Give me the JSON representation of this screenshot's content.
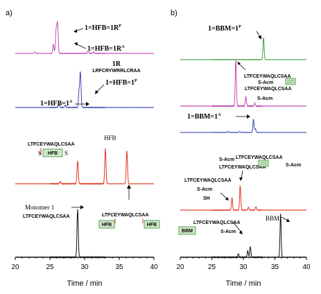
{
  "colors": {
    "magenta": "#c24bb6",
    "blue": "#3a45b8",
    "red": "#e0341c",
    "black": "#111111",
    "green": "#3aa33a",
    "box_fill": "#cfe8c8",
    "box_stroke": "#3a8a3a"
  },
  "chart_data": [
    {
      "type": "line",
      "panel_label": "a)",
      "xlabel": "Time / min",
      "xlim": [
        20,
        40
      ],
      "x_ticks": [
        "20",
        "25",
        "30",
        "35",
        "40"
      ],
      "series": [
        {
          "color_key": "magenta",
          "peaks": [
            [
              22.8,
              0.05
            ],
            [
              25.5,
              0.3
            ],
            [
              25.9,
              0.8
            ],
            [
              26.1,
              1.0
            ],
            [
              30.5,
              0.08
            ],
            [
              31.3,
              0.05
            ]
          ],
          "annotations": [
            {
              "text": "1=HFB=1R",
              "sup": "P"
            },
            {
              "text": "1=HFB=1R",
              "sup": "A"
            },
            {
              "text": "1R"
            },
            {
              "text": "LRFCRYWRRLCRAA"
            }
          ]
        },
        {
          "color_key": "blue",
          "peaks": [
            [
              26.3,
              0.1
            ],
            [
              27.2,
              0.06
            ],
            [
              29.2,
              0.45
            ],
            [
              29.4,
              1.0
            ]
          ],
          "annotations": [
            {
              "text": "1=HFB=1",
              "sup": "P"
            },
            {
              "text": "1=HFB=1",
              "sup": "A"
            }
          ]
        },
        {
          "color_key": "red",
          "peaks": [
            [
              26.5,
              0.05
            ],
            [
              29.0,
              0.55
            ],
            [
              33.0,
              0.85
            ],
            [
              36.1,
              0.8
            ]
          ],
          "annotations": [
            {
              "text": "LTFCEYWAQLCSAA"
            },
            {
              "text": "HFB"
            },
            {
              "text": "HFB"
            },
            {
              "text": "LTFCEYWAQLCSAA"
            },
            {
              "text": "HFB"
            },
            {
              "text": "HFB"
            }
          ]
        },
        {
          "color_key": "black",
          "peaks": [
            [
              29.0,
              1.0
            ]
          ],
          "annotations": [
            {
              "text": "Monomer 1"
            },
            {
              "text": "LTFCEYWAQLCSAA"
            }
          ]
        }
      ]
    },
    {
      "type": "line",
      "panel_label": "b)",
      "xlabel": "Time / min",
      "xlim": [
        20,
        40
      ],
      "x_ticks": [
        "20",
        "25",
        "30",
        "35",
        "40"
      ],
      "series": [
        {
          "color_key": "green",
          "peaks": [
            [
              33.2,
              1.0
            ]
          ],
          "annotations": [
            {
              "text": "1=BBM=1",
              "sup": "P"
            }
          ]
        },
        {
          "color_key": "magenta",
          "peaks": [
            [
              28.8,
              1.0
            ],
            [
              30.4,
              0.2
            ],
            [
              31.8,
              0.06
            ]
          ],
          "annotations": [
            {
              "text": "LTFCEYWAQLCSAA"
            },
            {
              "text": "S-Acm"
            },
            {
              "text": "LTFCEYWAQLCSAA"
            },
            {
              "text": "S-Acm"
            }
          ]
        },
        {
          "color_key": "blue",
          "peaks": [
            [
              27.5,
              0.05
            ],
            [
              29.4,
              0.05
            ],
            [
              31.6,
              0.7
            ],
            [
              31.9,
              0.2
            ]
          ],
          "annotations": [
            {
              "text": "1=BBM=1",
              "sup": "A"
            }
          ]
        },
        {
          "color_key": "red",
          "peaks": [
            [
              28.2,
              0.4
            ],
            [
              29.5,
              0.8
            ],
            [
              30.8,
              0.1
            ],
            [
              32.0,
              0.12
            ]
          ],
          "annotations": [
            {
              "text": "S-Acm"
            },
            {
              "text": "LTFCEYWAQLCSAA"
            },
            {
              "text": "LTFCEYWAQLCSAA"
            },
            {
              "text": "S-Acm"
            },
            {
              "text": "LTFCEYWAQLCSAA"
            },
            {
              "text": "S-Acm"
            },
            {
              "text": "SH"
            }
          ]
        },
        {
          "color_key": "black",
          "peaks": [
            [
              29.2,
              0.08
            ],
            [
              30.7,
              0.15
            ],
            [
              31.1,
              0.25
            ],
            [
              35.9,
              1.0
            ]
          ],
          "annotations": [
            {
              "text": "BBM"
            },
            {
              "text": "LTFCEYWAQLCSAA"
            },
            {
              "text": "BBM"
            },
            {
              "text": "S-Acm"
            }
          ]
        }
      ]
    }
  ],
  "labels": {
    "a_mag_1": "1=HFB=1R",
    "a_mag_1_sup": "P",
    "a_mag_2": "1=HFB=1R",
    "a_mag_2_sup": "A",
    "a_mag_3": "1R",
    "a_mag_seq": "LRFCRYWRRLCRAA",
    "a_blue_1": "1=HFB=1",
    "a_blue_1_sup": "P",
    "a_blue_2": "1=HFB=1",
    "a_blue_2_sup": "A",
    "a_red_seq_left": "LTFCEYWAQLCSAA",
    "a_red_box_left": "HFB",
    "a_red_hfb": "HFB",
    "a_blk_seq_right": "LTFCEYWAQLCSAA",
    "a_blk_box_left": "HFB",
    "a_blk_box_right": "HFB",
    "a_mono": "Monomer 1",
    "a_mono_seq": "LTFCEYWAQLCSAA",
    "b_green": "1=BBM=1",
    "b_green_sup": "P",
    "b_mag_seq1": "LTFCEYWAQLCSAA",
    "b_mag_acm1": "S-Acm",
    "b_mag_seq2": "LTFCEYWAQLCSAA",
    "b_mag_acm2": "S-Acm",
    "b_blue": "1=BBM=1",
    "b_blue_sup": "A",
    "b_red_acm_top": "S-Acm",
    "b_red_seq1": "LTFCEYWAQLCSAA",
    "b_red_seq2": "LTFCEYWAQLCSAA",
    "b_red_acm_right": "S-Acm",
    "b_red_seq3": "LTFCEYWAQLCSAA",
    "b_red_acm3": "S-Acm",
    "b_red_sh": "SH",
    "b_blk_bbm": "BBM",
    "b_blk_seq": "LTFCEYWAQLCSAA",
    "b_blk_box": "BBM",
    "b_blk_acm": "S-Acm"
  }
}
